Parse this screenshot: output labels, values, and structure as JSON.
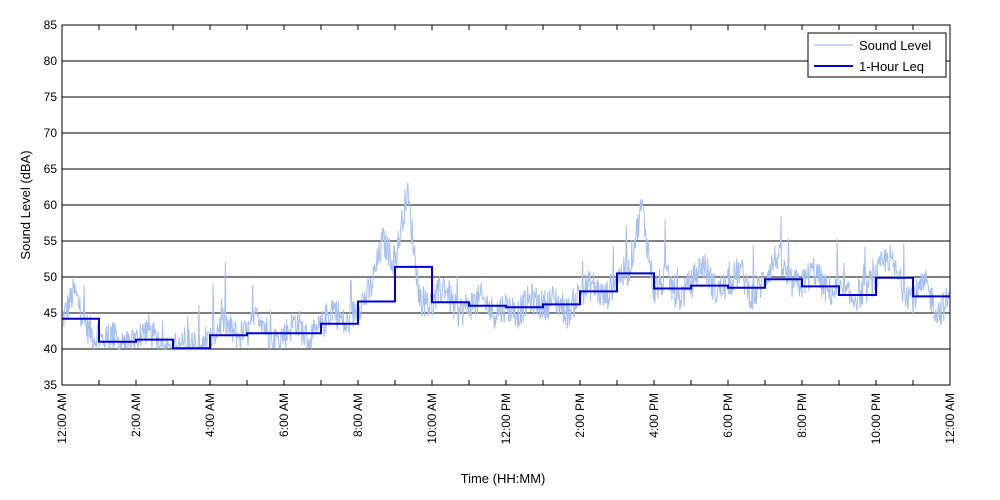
{
  "chart_data": {
    "type": "line",
    "xlabel": "Time (HH:MM)",
    "ylabel": "Sound Level (dBA)",
    "ylim": [
      35,
      85
    ],
    "yticks": [
      35,
      40,
      45,
      50,
      55,
      60,
      65,
      70,
      75,
      80,
      85
    ],
    "xlim_hours": [
      0,
      24
    ],
    "xtick_labels": [
      "12:00 AM",
      "2:00 AM",
      "4:00 AM",
      "6:00 AM",
      "8:00 AM",
      "10:00 AM",
      "12:00 PM",
      "2:00 PM",
      "4:00 PM",
      "6:00 PM",
      "8:00 PM",
      "10:00 PM",
      "12:00 AM"
    ],
    "grid": "horizontal",
    "legend_position": "top-right",
    "colors": {
      "sound_level": "#a8c0ee",
      "leq": "#0000cc"
    },
    "series": [
      {
        "name": "Sound Level",
        "hours": [
          0,
          0.33,
          0.67,
          1,
          1.33,
          1.67,
          2,
          2.33,
          2.67,
          3,
          3.33,
          3.67,
          4,
          4.33,
          4.67,
          5,
          5.33,
          5.67,
          6,
          6.33,
          6.67,
          7,
          7.33,
          7.67,
          8,
          8.33,
          8.67,
          9,
          9.33,
          9.67,
          10,
          10.33,
          10.67,
          11,
          11.33,
          11.67,
          12,
          12.33,
          12.67,
          13,
          13.33,
          13.67,
          14,
          14.33,
          14.67,
          15,
          15.33,
          15.67,
          16,
          16.33,
          16.67,
          17,
          17.33,
          17.67,
          18,
          18.33,
          18.67,
          19,
          19.33,
          19.67,
          20,
          20.33,
          20.67,
          21,
          21.33,
          21.67,
          22,
          22.33,
          22.67,
          23,
          23.33,
          23.67,
          24
        ],
        "values": [
          44,
          48,
          43,
          41,
          42,
          40,
          41,
          43,
          40,
          40,
          41,
          40,
          41,
          44,
          42,
          42,
          45,
          41,
          42,
          44,
          41,
          43,
          46,
          43,
          46,
          48,
          55,
          52,
          62,
          47,
          46,
          49,
          45,
          46,
          47,
          45,
          46,
          45,
          47,
          46,
          47,
          45,
          48,
          49,
          47,
          50,
          51,
          60,
          48,
          50,
          47,
          49,
          52,
          48,
          49,
          51,
          47,
          50,
          53,
          49,
          49,
          51,
          48,
          48,
          47,
          48,
          50,
          53,
          49,
          47,
          49,
          45,
          47
        ]
      },
      {
        "name": "1-Hour Leq",
        "hours": [
          0,
          1,
          2,
          3,
          4,
          5,
          6,
          7,
          8,
          9,
          10,
          11,
          12,
          13,
          14,
          15,
          16,
          17,
          18,
          19,
          20,
          21,
          22,
          23,
          24
        ],
        "values": [
          44.2,
          41.0,
          41.3,
          40.1,
          41.9,
          42.2,
          42.2,
          43.5,
          46.6,
          51.4,
          46.5,
          46.0,
          45.8,
          46.2,
          48.0,
          50.5,
          48.4,
          48.8,
          48.5,
          49.7,
          48.7,
          47.5,
          49.9,
          47.3,
          47.3
        ]
      }
    ]
  }
}
